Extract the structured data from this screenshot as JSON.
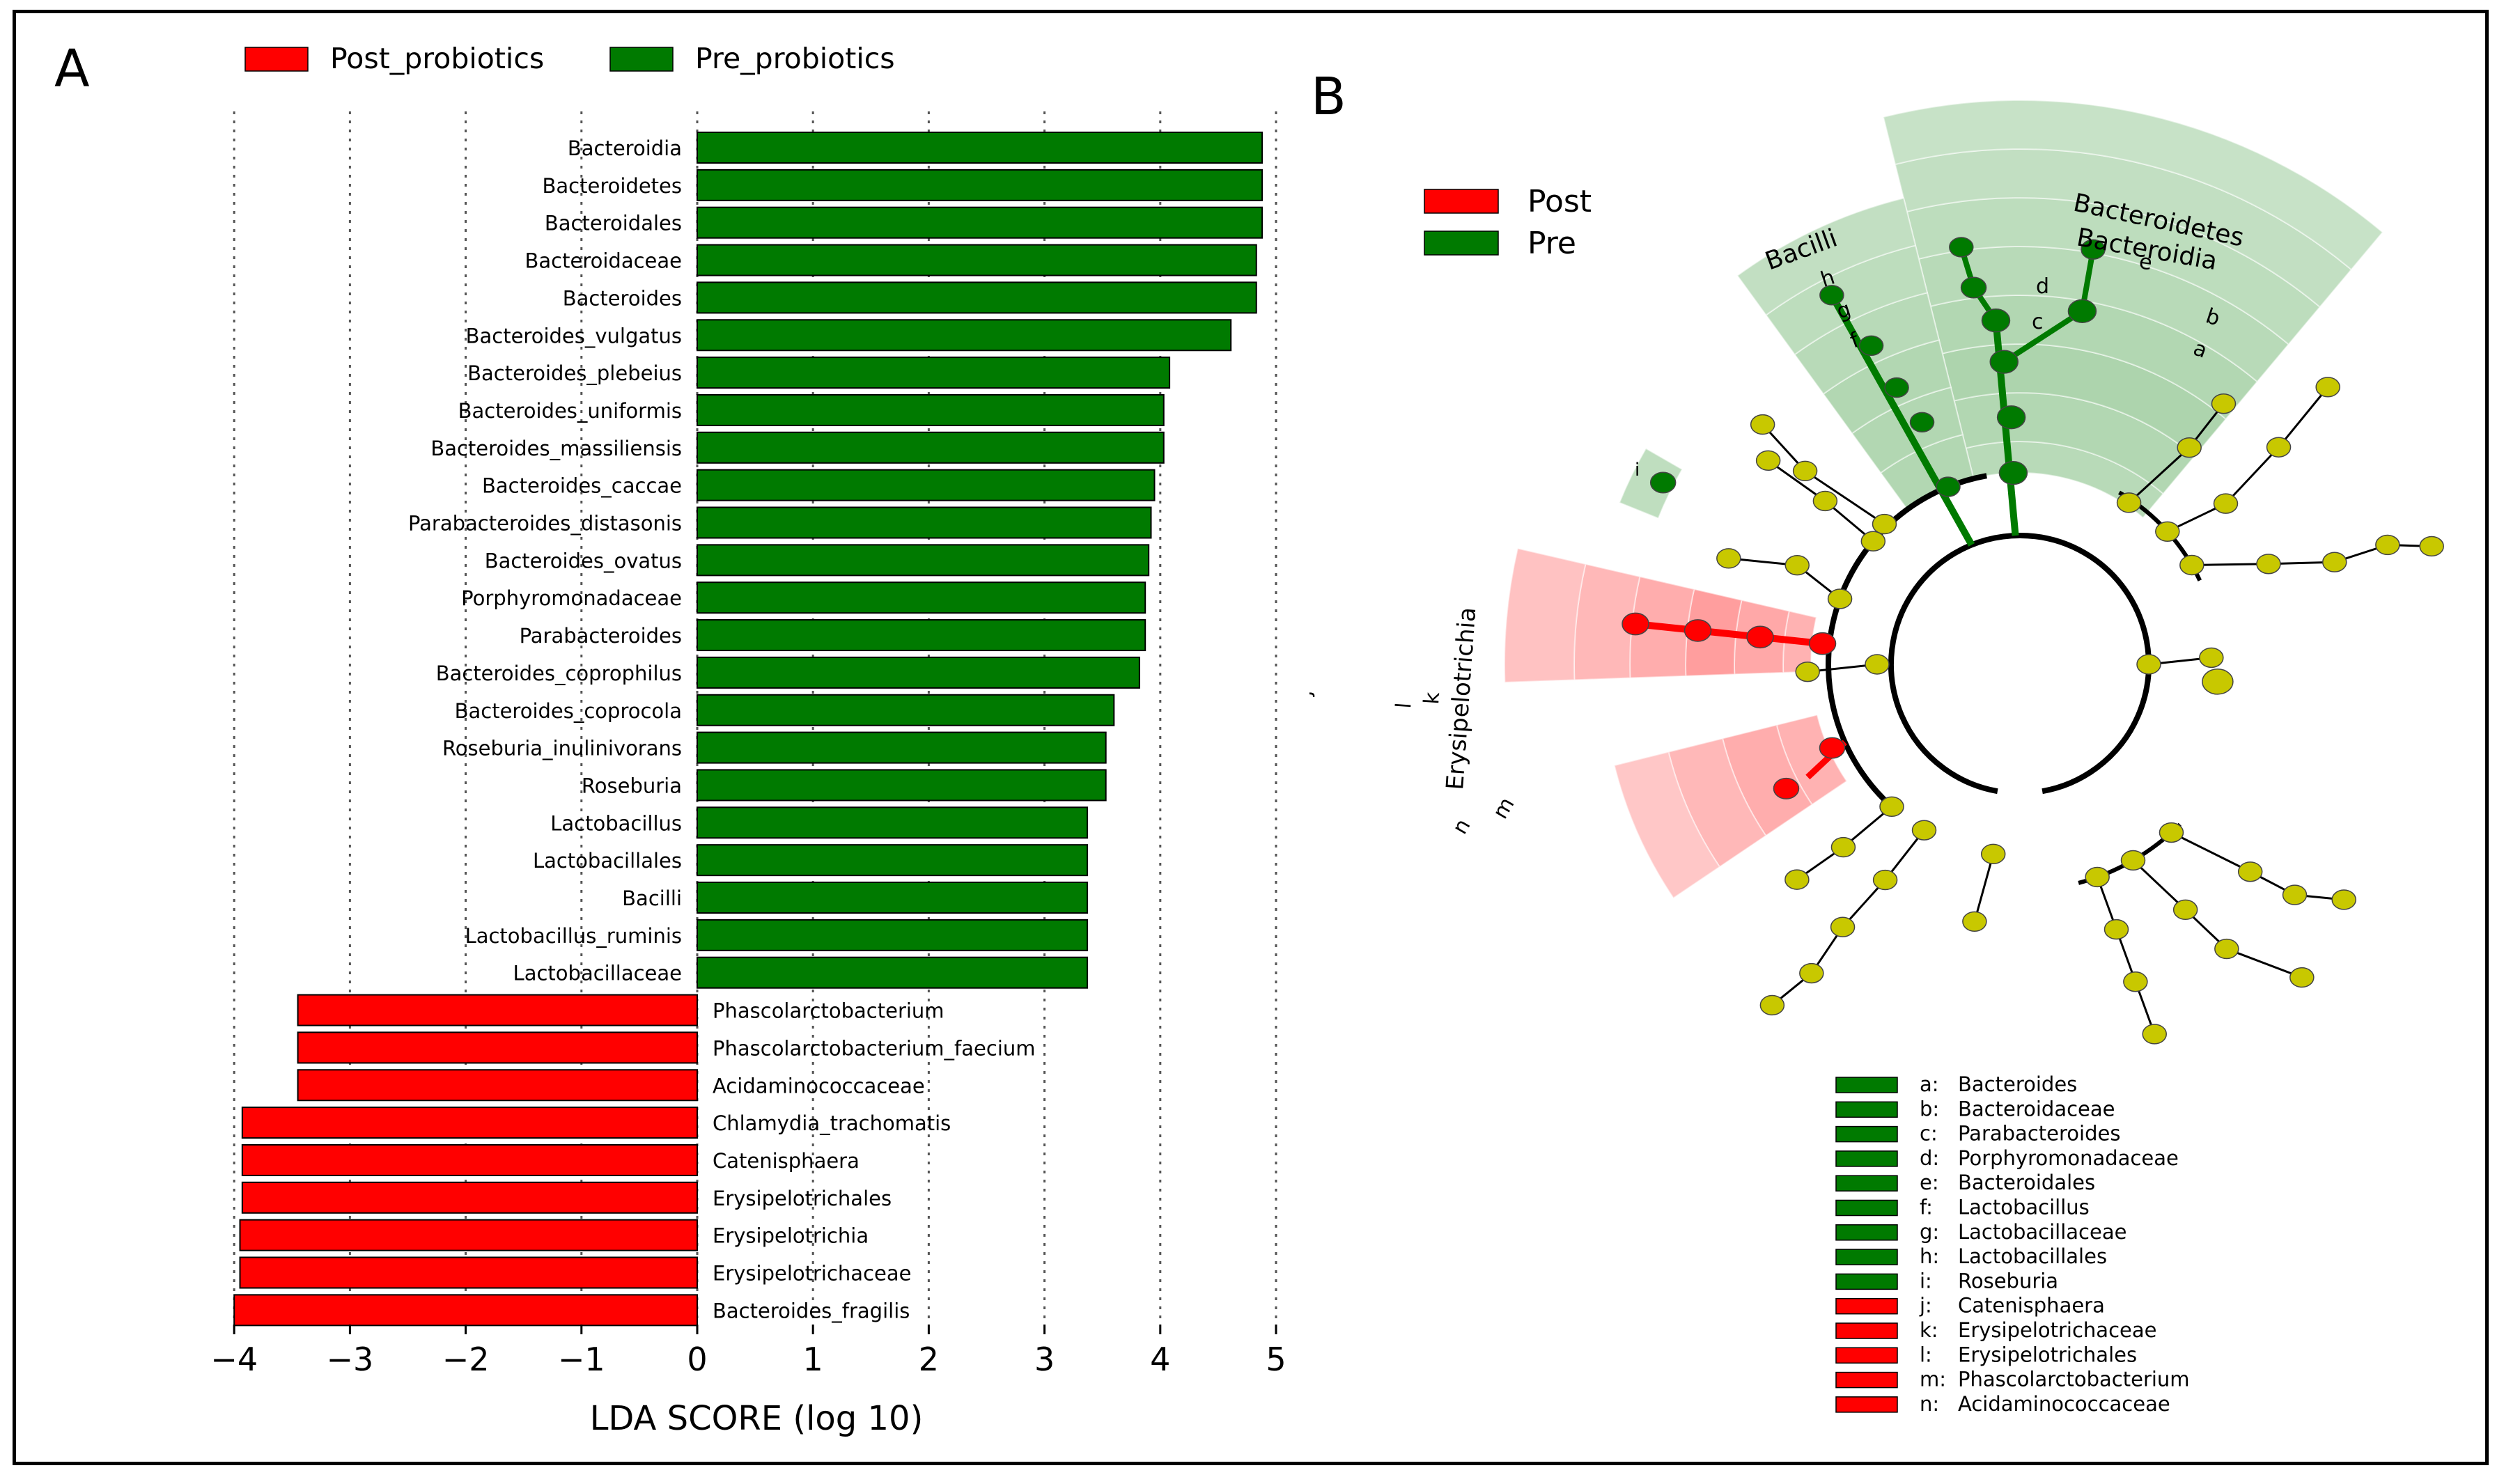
{
  "chart_data": [
    {
      "type": "bar",
      "orientation": "horizontal",
      "panel_label": "A",
      "title": "",
      "xlabel": "LDA SCORE (log 10)",
      "ylabel": "",
      "xlim": [
        -4.0,
        5.0
      ],
      "xticks": [
        "−4",
        "−3",
        "−2",
        "−1",
        "0",
        "1",
        "2",
        "3",
        "4",
        "5"
      ],
      "xtick_values": [
        -4,
        -3,
        -2,
        -1,
        0,
        1,
        2,
        3,
        4,
        5
      ],
      "grid": "vertical dotted",
      "legend_position": "top",
      "legend": [
        {
          "name": "Post_probiotics",
          "color": "#ff0000"
        },
        {
          "name": "Pre_probiotics",
          "color": "#007a00"
        }
      ],
      "categories": [
        "Bacteroidia",
        "Bacteroidetes",
        "Bacteroidales",
        "Bacteroidaceae",
        "Bacteroides",
        "Bacteroides_vulgatus",
        "Bacteroides_plebeius",
        "Bacteroides_uniformis",
        "Bacteroides_massiliensis",
        "Bacteroides_caccae",
        "Parabacteroides_distasonis",
        "Bacteroides_ovatus",
        "Porphyromonadaceae",
        "Parabacteroides",
        "Bacteroides_coprophilus",
        "Bacteroides_coprocola",
        "Roseburia_inulinivorans",
        "Roseburia",
        "Lactobacillus",
        "Lactobacillales",
        "Bacilli",
        "Lactobacillus_ruminis",
        "Lactobacillaceae",
        "Phascolarctobacterium",
        "Phascolarctobacterium_faecium",
        "Acidaminococcaceae",
        "Chlamydia_trachomatis",
        "Catenisphaera",
        "Erysipelotrichales",
        "Erysipelotrichia",
        "Erysipelotrichaceae",
        "Bacteroides_fragilis"
      ],
      "values": [
        4.88,
        4.88,
        4.88,
        4.83,
        4.83,
        4.61,
        4.08,
        4.03,
        4.03,
        3.95,
        3.92,
        3.9,
        3.87,
        3.87,
        3.82,
        3.6,
        3.53,
        3.53,
        3.37,
        3.37,
        3.37,
        3.37,
        3.37,
        -3.45,
        -3.45,
        -3.45,
        -3.93,
        -3.93,
        -3.93,
        -3.95,
        -3.95,
        -4.0
      ],
      "groups": [
        "Pre_probiotics",
        "Pre_probiotics",
        "Pre_probiotics",
        "Pre_probiotics",
        "Pre_probiotics",
        "Pre_probiotics",
        "Pre_probiotics",
        "Pre_probiotics",
        "Pre_probiotics",
        "Pre_probiotics",
        "Pre_probiotics",
        "Pre_probiotics",
        "Pre_probiotics",
        "Pre_probiotics",
        "Pre_probiotics",
        "Pre_probiotics",
        "Pre_probiotics",
        "Pre_probiotics",
        "Pre_probiotics",
        "Pre_probiotics",
        "Pre_probiotics",
        "Pre_probiotics",
        "Pre_probiotics",
        "Post_probiotics",
        "Post_probiotics",
        "Post_probiotics",
        "Post_probiotics",
        "Post_probiotics",
        "Post_probiotics",
        "Post_probiotics",
        "Post_probiotics",
        "Post_probiotics"
      ]
    },
    {
      "type": "cladogram",
      "panel_label": "B",
      "title": "",
      "legend_position": "top-left",
      "legend": [
        {
          "name": "Post",
          "color": "#ff0000"
        },
        {
          "name": "Pre",
          "color": "#007a00"
        }
      ],
      "clade_labels": [
        "Bacteroidetes",
        "Bacteroidia",
        "Bacilli",
        "Erysipelotrichia"
      ],
      "node_letters": [
        "a",
        "b",
        "c",
        "d",
        "e",
        "f",
        "g",
        "h",
        "i",
        "j",
        "k",
        "l",
        "m",
        "n"
      ],
      "key": [
        {
          "letter": "a",
          "taxon": "Bacteroides",
          "group": "Pre"
        },
        {
          "letter": "b",
          "taxon": "Bacteroidaceae",
          "group": "Pre"
        },
        {
          "letter": "c",
          "taxon": "Parabacteroides",
          "group": "Pre"
        },
        {
          "letter": "d",
          "taxon": "Porphyromonadaceae",
          "group": "Pre"
        },
        {
          "letter": "e",
          "taxon": "Bacteroidales",
          "group": "Pre"
        },
        {
          "letter": "f",
          "taxon": "Lactobacillus",
          "group": "Pre"
        },
        {
          "letter": "g",
          "taxon": "Lactobacillaceae",
          "group": "Pre"
        },
        {
          "letter": "h",
          "taxon": "Lactobacillales",
          "group": "Pre"
        },
        {
          "letter": "i",
          "taxon": "Roseburia",
          "group": "Pre"
        },
        {
          "letter": "j",
          "taxon": "Catenisphaera",
          "group": "Post"
        },
        {
          "letter": "k",
          "taxon": "Erysipelotrichaceae",
          "group": "Post"
        },
        {
          "letter": "l",
          "taxon": "Erysipelotrichales",
          "group": "Post"
        },
        {
          "letter": "m",
          "taxon": "Phascolarctobacterium",
          "group": "Post"
        },
        {
          "letter": "n",
          "taxon": "Acidaminococcaceae",
          "group": "Post"
        }
      ]
    }
  ],
  "colors": {
    "post": "#ff0000",
    "pre": "#007a00",
    "neutral_node": "#c8c800",
    "edge": "#000000"
  }
}
